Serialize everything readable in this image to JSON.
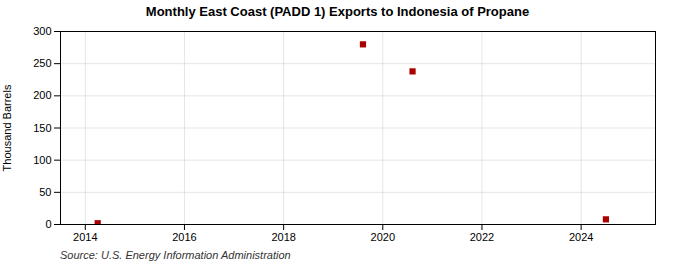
{
  "chart_data": {
    "type": "scatter",
    "title": "Monthly East Coast (PADD 1) Exports to Indonesia of Propane",
    "ylabel": "Thousand Barrels",
    "source": "Source: U.S. Energy Information Administration",
    "x": [
      2014.25,
      2019.6,
      2020.6,
      2024.5
    ],
    "values": [
      2,
      280,
      238,
      8
    ],
    "color": "#aa0000",
    "marker": "square",
    "xlim": [
      2013.5,
      2025.5
    ],
    "ylim": [
      0,
      300
    ],
    "xticks": [
      2014,
      2016,
      2018,
      2020,
      2022,
      2024
    ],
    "yticks": [
      0,
      50,
      100,
      150,
      200,
      250,
      300
    ],
    "grid": true
  }
}
